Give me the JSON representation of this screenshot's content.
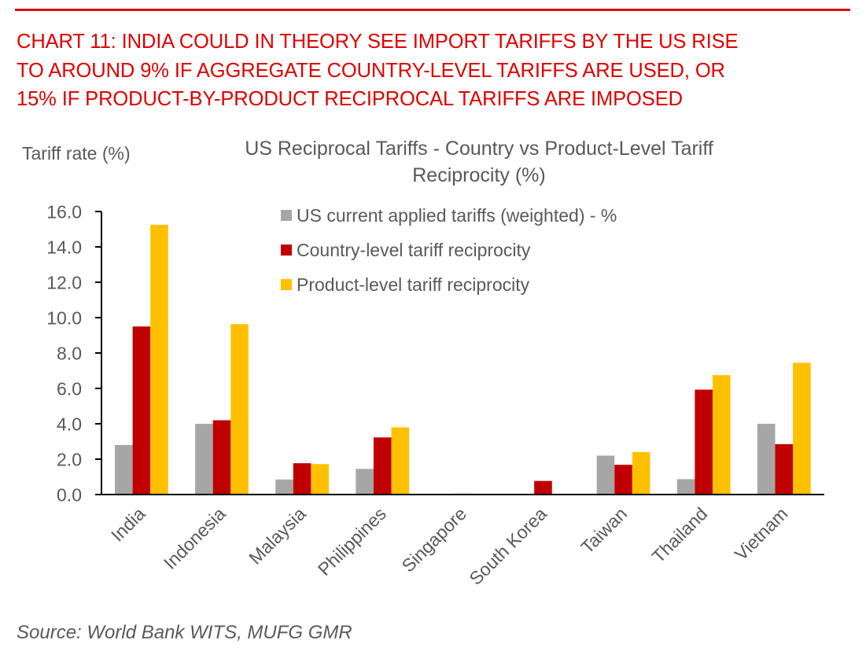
{
  "header": {
    "headline_lines": [
      "CHART 11: INDIA COULD IN THEORY SEE IMPORT TARIFFS BY THE US RISE",
      "TO AROUND 9% IF AGGREGATE COUNTRY-LEVEL TARIFFS ARE USED, OR",
      "15% IF PRODUCT-BY-PRODUCT RECIPROCAL TARIFFS ARE IMPOSED"
    ],
    "accent_color": "#e00000"
  },
  "footer": {
    "source": "Source: World Bank WITS, MUFG GMR"
  },
  "chart_data": {
    "type": "bar",
    "title_lines": [
      "US Reciprocal Tariffs - Country vs Product-Level Tariff",
      "Reciprocity (%)"
    ],
    "xlabel": "",
    "ylabel": "Tariff rate (%)",
    "ylim": [
      0,
      16
    ],
    "yticks": [
      "0.0",
      "2.0",
      "4.0",
      "6.0",
      "8.0",
      "10.0",
      "12.0",
      "14.0",
      "16.0"
    ],
    "grid": false,
    "legend_position": "top-center",
    "categories": [
      "India",
      "Indonesia",
      "Malaysia",
      "Philippines",
      "Singapore",
      "South Korea",
      "Taiwan",
      "Thailand",
      "Vietnam"
    ],
    "series": [
      {
        "name": "US current applied tariffs (weighted) - %",
        "color": "#a6a6a6",
        "values": [
          2.8,
          4.0,
          0.85,
          1.45,
          0.0,
          0.0,
          2.2,
          0.87,
          4.0
        ]
      },
      {
        "name": "Country-level tariff reciprocity",
        "color": "#c00000",
        "values": [
          9.5,
          4.2,
          1.77,
          3.23,
          0.05,
          0.77,
          1.68,
          5.93,
          2.85
        ]
      },
      {
        "name": "Product-level tariff reciprocity",
        "color": "#ffc000",
        "values": [
          15.25,
          9.63,
          1.72,
          3.8,
          0.0,
          0.0,
          2.4,
          6.75,
          7.45
        ]
      }
    ]
  }
}
